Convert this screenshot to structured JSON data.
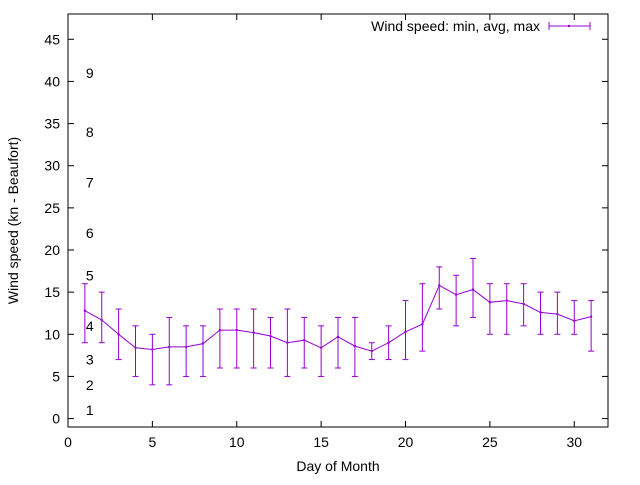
{
  "chart_data": {
    "type": "line",
    "title": "",
    "xlabel": "Day of Month",
    "ylabel": "Wind speed (kn - Beaufort)",
    "xlim": [
      0,
      32
    ],
    "ylim": [
      -1,
      48
    ],
    "x_ticks": [
      0,
      5,
      10,
      15,
      20,
      25,
      30
    ],
    "y_ticks": [
      0,
      5,
      10,
      15,
      20,
      25,
      30,
      35,
      40,
      45
    ],
    "grid": false,
    "legend_position": "top-right",
    "series": [
      {
        "name": "Wind speed: min, avg, max",
        "color": "#9400d3",
        "style": "line with error bars",
        "x": [
          1,
          2,
          3,
          4,
          5,
          6,
          7,
          8,
          9,
          10,
          11,
          12,
          13,
          14,
          15,
          16,
          17,
          18,
          19,
          20,
          21,
          22,
          23,
          24,
          25,
          26,
          27,
          28,
          29,
          30,
          31
        ],
        "y": [
          12.8,
          11.7,
          10.0,
          8.4,
          8.2,
          8.5,
          8.5,
          8.9,
          10.5,
          10.5,
          10.2,
          9.8,
          9.0,
          9.3,
          8.4,
          9.7,
          8.6,
          8.0,
          9.0,
          10.3,
          11.2,
          15.8,
          14.7,
          15.3,
          13.8,
          14.0,
          13.6,
          12.6,
          12.4,
          11.6,
          12.1
        ],
        "ymin": [
          9,
          9,
          7,
          5,
          4,
          4,
          5,
          5,
          6,
          6,
          6,
          6,
          5,
          6,
          5,
          6,
          5,
          7,
          7,
          7,
          8,
          13,
          11,
          12,
          10,
          10,
          11,
          10,
          10,
          10,
          8
        ],
        "ymax": [
          16,
          15,
          13,
          11,
          10,
          12,
          11,
          11,
          13,
          13,
          13,
          12,
          13,
          12,
          11,
          12,
          12,
          9,
          11,
          14,
          16,
          18,
          17,
          19,
          16,
          16,
          16,
          15,
          15,
          14,
          14
        ]
      }
    ],
    "annotations": [
      {
        "text": "1",
        "x": 0.7,
        "y": 1
      },
      {
        "text": "2",
        "x": 0.7,
        "y": 4
      },
      {
        "text": "3",
        "x": 0.7,
        "y": 7
      },
      {
        "text": "4",
        "x": 0.7,
        "y": 11
      },
      {
        "text": "5",
        "x": 0.7,
        "y": 17
      },
      {
        "text": "6",
        "x": 0.7,
        "y": 22
      },
      {
        "text": "7",
        "x": 0.7,
        "y": 28
      },
      {
        "text": "8",
        "x": 0.7,
        "y": 34
      },
      {
        "text": "9",
        "x": 0.7,
        "y": 41
      }
    ]
  }
}
